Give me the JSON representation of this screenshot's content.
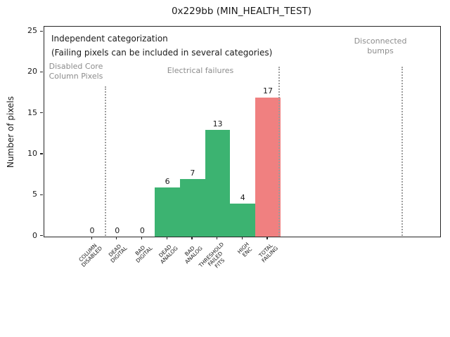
{
  "figure": {
    "title": "0x229bb (MIN_HEALTH_TEST)"
  },
  "chart_data": {
    "type": "bar",
    "title": "0x229bb (MIN_HEALTH_TEST)",
    "xlabel": "",
    "ylabel": "Number of pixels",
    "ylim": [
      0,
      25.6
    ],
    "yticks": [
      0,
      5,
      10,
      15,
      20,
      25
    ],
    "grid": false,
    "legend": null,
    "categories": [
      "COLUMN\nDISABLED",
      "DEAD\nDIGITAL",
      "BAD\nDIGITAL",
      "DEAD\nANALOG",
      "BAD\nANALOG",
      "THRESHOLD\nFAILED\nFITS",
      "HIGH\nENC",
      "TOTAL\nFAILING"
    ],
    "values": [
      0,
      0,
      0,
      6,
      7,
      13,
      4,
      17
    ],
    "value_labels": [
      "0",
      "0",
      "0",
      "6",
      "7",
      "13",
      "4",
      "17"
    ],
    "bar_colors": [
      "#3cb371",
      "#3cb371",
      "#3cb371",
      "#3cb371",
      "#3cb371",
      "#3cb371",
      "#3cb371",
      "#f08080"
    ],
    "annotations": [
      {
        "id": "note1",
        "text": "Independent categorization",
        "color": "#1a1a1a"
      },
      {
        "id": "note2",
        "text": "(Failing pixels can be included in several categories)",
        "color": "#1a1a1a"
      },
      {
        "id": "region-disabled-core",
        "text": "Disabled Core\nColumn Pixels",
        "color": "#8c8c8c"
      },
      {
        "id": "region-electrical",
        "text": "Electrical failures",
        "color": "#8c8c8c"
      },
      {
        "id": "region-disconnected",
        "text": "Disconnected\nbumps",
        "color": "#8c8c8c"
      }
    ],
    "colors": {
      "bar_green": "#3cb371",
      "bar_red": "#f08080",
      "region_label_gray": "#8c8c8c",
      "divider_gray": "#9e9e9e"
    }
  }
}
